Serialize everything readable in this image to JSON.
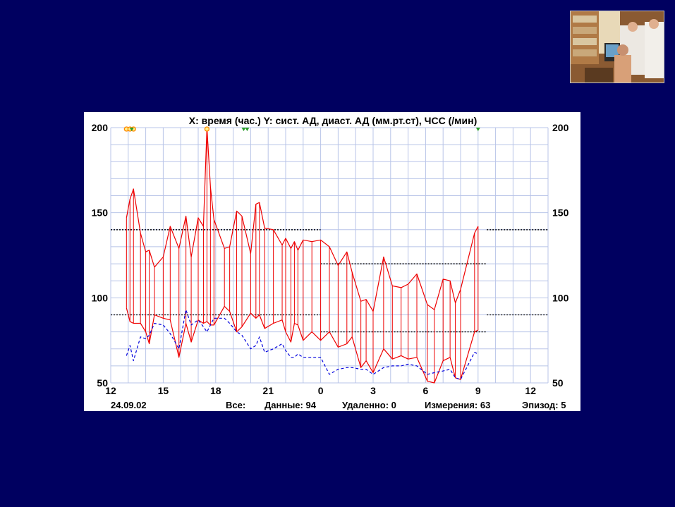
{
  "slide": {
    "background": "#000060",
    "photo_icon": "doctors-photo"
  },
  "chart_data": {
    "type": "line",
    "title": "X: время (час.)  Y: сист. АД, диаст. АД (мм.рт.ст), ЧСС (/мин)",
    "xlabel": "X: время (час.)",
    "ylabel": "Y: сист. АД, диаст. АД (мм.рт.ст), ЧСС (/мин)",
    "x_unit": "hours since 24.09.02 00:00",
    "xlim": [
      12,
      37
    ],
    "ylim": [
      50,
      200
    ],
    "x_ticks": [
      12,
      15,
      18,
      21,
      24,
      27,
      30,
      33,
      36
    ],
    "x_tick_labels": [
      "12",
      "15",
      "18",
      "21",
      "0",
      "3",
      "6",
      "9",
      "12"
    ],
    "y_ticks": [
      50,
      100,
      150,
      200
    ],
    "y_tick_labels": [
      "50",
      "100",
      "150",
      "200"
    ],
    "date_label": "24.09.02",
    "footer": {
      "all_label": "Все:",
      "data_label": "Данные: 94",
      "deleted_label": "Удаленно: 0",
      "measurements_label": "Измерения: 63",
      "episode_label": "Эпизод: 5"
    },
    "thresholds": {
      "day": {
        "x": [
          12,
          24
        ],
        "systolic": 140,
        "diastolic": 90
      },
      "night": {
        "x": [
          24,
          33.5
        ],
        "systolic": 120,
        "diastolic": 80
      },
      "morning": {
        "x": [
          33.5,
          37
        ],
        "systolic": 140,
        "diastolic": 90
      }
    },
    "grid": true,
    "series": [
      {
        "color": "#ee0000",
        "style": "solid",
        "values": [
          [
            12.9,
            147
          ],
          [
            13.1,
            158
          ],
          [
            13.3,
            164
          ],
          [
            13.7,
            138
          ],
          [
            14.0,
            127
          ],
          [
            14.2,
            128
          ],
          [
            14.5,
            118
          ],
          [
            15.0,
            124
          ],
          [
            15.4,
            142
          ],
          [
            15.9,
            129
          ],
          [
            16.3,
            148
          ],
          [
            16.6,
            124
          ],
          [
            17.0,
            147
          ],
          [
            17.3,
            142
          ],
          [
            17.5,
            200
          ],
          [
            17.7,
            165
          ],
          [
            17.9,
            146
          ],
          [
            18.5,
            129
          ],
          [
            18.8,
            130
          ],
          [
            19.2,
            151
          ],
          [
            19.5,
            148
          ],
          [
            20.0,
            126
          ],
          [
            20.3,
            155
          ],
          [
            20.5,
            156
          ],
          [
            20.8,
            141
          ],
          [
            21.3,
            140
          ],
          [
            21.8,
            131
          ],
          [
            22.0,
            135
          ],
          [
            22.3,
            129
          ],
          [
            22.5,
            133
          ],
          [
            22.7,
            128
          ],
          [
            23.0,
            134
          ],
          [
            23.5,
            133
          ],
          [
            24.0,
            134
          ],
          [
            24.5,
            130
          ],
          [
            25.0,
            119
          ],
          [
            25.5,
            127
          ],
          [
            25.8,
            115
          ],
          [
            26.3,
            98
          ],
          [
            26.6,
            99
          ],
          [
            27.0,
            92
          ],
          [
            27.6,
            124
          ],
          [
            28.1,
            107
          ],
          [
            28.6,
            106
          ],
          [
            29.0,
            108
          ],
          [
            29.5,
            114
          ],
          [
            30.1,
            96
          ],
          [
            30.5,
            93
          ],
          [
            31.0,
            111
          ],
          [
            31.4,
            110
          ],
          [
            31.7,
            97
          ],
          [
            32.0,
            105
          ],
          [
            32.8,
            138
          ],
          [
            33.0,
            142
          ]
        ]
      },
      {
        "color": "#ee0000",
        "style": "solid",
        "values": [
          [
            12.9,
            94
          ],
          [
            13.1,
            86
          ],
          [
            13.3,
            85
          ],
          [
            13.7,
            85
          ],
          [
            14.0,
            80
          ],
          [
            14.2,
            73
          ],
          [
            14.5,
            90
          ],
          [
            15.0,
            88
          ],
          [
            15.4,
            87
          ],
          [
            15.9,
            65
          ],
          [
            16.3,
            85
          ],
          [
            16.6,
            74
          ],
          [
            17.0,
            87
          ],
          [
            17.3,
            85
          ],
          [
            17.5,
            86
          ],
          [
            17.7,
            84
          ],
          [
            17.9,
            84
          ],
          [
            18.5,
            95
          ],
          [
            18.8,
            92
          ],
          [
            19.2,
            80
          ],
          [
            19.5,
            83
          ],
          [
            20.0,
            91
          ],
          [
            20.3,
            88
          ],
          [
            20.5,
            90
          ],
          [
            20.8,
            82
          ],
          [
            21.3,
            85
          ],
          [
            21.8,
            87
          ],
          [
            22.0,
            80
          ],
          [
            22.3,
            74
          ],
          [
            22.5,
            85
          ],
          [
            22.7,
            84
          ],
          [
            23.0,
            75
          ],
          [
            23.5,
            80
          ],
          [
            24.0,
            75
          ],
          [
            24.5,
            80
          ],
          [
            25.0,
            71
          ],
          [
            25.5,
            73
          ],
          [
            25.8,
            77
          ],
          [
            26.3,
            59
          ],
          [
            26.6,
            63
          ],
          [
            27.0,
            56
          ],
          [
            27.6,
            70
          ],
          [
            28.1,
            64
          ],
          [
            28.6,
            66
          ],
          [
            29.0,
            64
          ],
          [
            29.5,
            65
          ],
          [
            30.1,
            51
          ],
          [
            30.5,
            50
          ],
          [
            31.0,
            63
          ],
          [
            31.4,
            65
          ],
          [
            31.7,
            53
          ],
          [
            32.0,
            52
          ],
          [
            32.8,
            80
          ],
          [
            33.0,
            81
          ]
        ]
      },
      {
        "color": "#0000dd",
        "style": "dashed",
        "values": [
          [
            12.9,
            66
          ],
          [
            13.1,
            72
          ],
          [
            13.3,
            63
          ],
          [
            13.7,
            77
          ],
          [
            14.0,
            76
          ],
          [
            14.2,
            78
          ],
          [
            14.5,
            85
          ],
          [
            15.0,
            84
          ],
          [
            15.4,
            79
          ],
          [
            15.9,
            70
          ],
          [
            16.3,
            93
          ],
          [
            16.6,
            84
          ],
          [
            17.0,
            87
          ],
          [
            17.3,
            83
          ],
          [
            17.5,
            80
          ],
          [
            17.9,
            88
          ],
          [
            18.5,
            88
          ],
          [
            18.8,
            85
          ],
          [
            19.2,
            80
          ],
          [
            19.5,
            78
          ],
          [
            20.0,
            70
          ],
          [
            20.3,
            72
          ],
          [
            20.5,
            77
          ],
          [
            20.8,
            68
          ],
          [
            21.3,
            70
          ],
          [
            21.8,
            73
          ],
          [
            22.0,
            69
          ],
          [
            22.3,
            65
          ],
          [
            22.5,
            65
          ],
          [
            22.7,
            67
          ],
          [
            23.0,
            65
          ],
          [
            23.5,
            65
          ],
          [
            24.0,
            65
          ],
          [
            24.5,
            55
          ],
          [
            25.0,
            58
          ],
          [
            25.5,
            59
          ],
          [
            25.8,
            59
          ],
          [
            26.3,
            58
          ],
          [
            26.6,
            58
          ],
          [
            27.0,
            55
          ],
          [
            27.6,
            59
          ],
          [
            28.1,
            60
          ],
          [
            28.6,
            60
          ],
          [
            29.0,
            61
          ],
          [
            29.5,
            60
          ],
          [
            30.1,
            55
          ],
          [
            30.5,
            56
          ],
          [
            31.0,
            57
          ],
          [
            31.4,
            58
          ],
          [
            31.7,
            53
          ],
          [
            32.0,
            52
          ],
          [
            32.8,
            68
          ],
          [
            33.0,
            67
          ]
        ]
      }
    ],
    "markers": [
      {
        "x": 12.9,
        "color": "#ff8800"
      },
      {
        "x": 13.1,
        "color": "#ff8800"
      },
      {
        "x": 13.3,
        "color": "#ff8800"
      },
      {
        "x": 13.2,
        "color": "#2a9d2a"
      },
      {
        "x": 17.5,
        "color": "#ff8800"
      },
      {
        "x": 19.6,
        "color": "#2a9d2a"
      },
      {
        "x": 19.8,
        "color": "#2a9d2a"
      },
      {
        "x": 33.0,
        "color": "#2a9d2a"
      }
    ]
  }
}
